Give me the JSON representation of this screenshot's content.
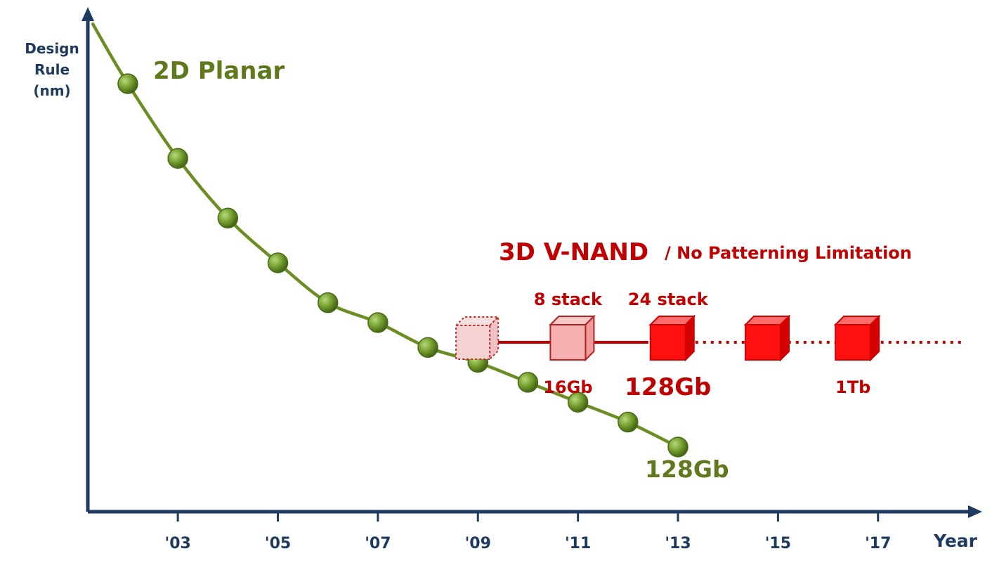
{
  "chart_data": {
    "type": "line",
    "title": "",
    "xlabel": "Year",
    "ylabel_lines": [
      "Design",
      "Rule",
      "(nm)"
    ],
    "x_ticks": [
      "'03",
      "'05",
      "'07",
      "'09",
      "'11",
      "'13",
      "'15",
      "'17"
    ],
    "x_tick_values": [
      2003,
      2005,
      2007,
      2009,
      2011,
      2013,
      2015,
      2017
    ],
    "xlim": [
      2001.2,
      2018.9
    ],
    "ylim": [
      0,
      100
    ],
    "y_ticks_shown": false,
    "grid": false,
    "series": [
      {
        "name": "2D Planar",
        "x": [
          2002,
          2003,
          2004,
          2005,
          2006,
          2007,
          2008,
          2009,
          2010,
          2011,
          2012,
          2013
        ],
        "y": [
          86,
          71,
          59,
          50,
          42,
          38,
          33,
          30,
          26,
          22,
          18,
          13
        ],
        "color": "#6b8e23",
        "label_end": "128Gb"
      }
    ],
    "vnand": {
      "title_main": "3D V-NAND",
      "title_sub": "/ No Patterning Limitation",
      "color": "#c00000",
      "milestones": [
        {
          "year": 2008.9,
          "style": "ghost",
          "top_label": "",
          "bottom_label": ""
        },
        {
          "year": 2010.8,
          "style": "light",
          "top_label": "8 stack",
          "bottom_label": "16Gb"
        },
        {
          "year": 2012.8,
          "style": "solid",
          "top_label": "24 stack",
          "bottom_label": "128Gb"
        },
        {
          "year": 2014.7,
          "style": "solid",
          "top_label": "",
          "bottom_label": ""
        },
        {
          "year": 2016.5,
          "style": "solid",
          "top_label": "",
          "bottom_label": "1Tb"
        }
      ],
      "solid_until_year": 2012.8,
      "dotted_until_year": 2018.7
    }
  }
}
